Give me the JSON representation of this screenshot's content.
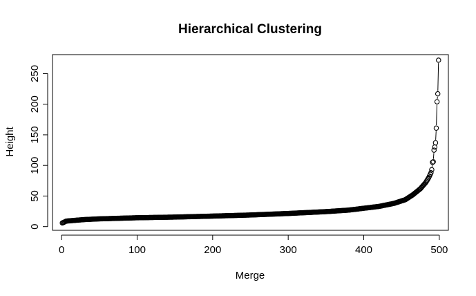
{
  "chart_data": {
    "type": "scatter",
    "title": "Hierarchical Clustering",
    "xlabel": "Merge",
    "ylabel": "Height",
    "xlim": [
      -12,
      512
    ],
    "ylim": [
      -6,
      281
    ],
    "x_ticks": [
      0,
      100,
      200,
      300,
      400,
      500
    ],
    "y_ticks": [
      0,
      50,
      100,
      150,
      200,
      250
    ],
    "grid": false,
    "legend": "none",
    "point_shape": "open-circle",
    "connected": true,
    "n_points": 499,
    "curve_points": [
      {
        "x": 1,
        "y": 6
      },
      {
        "x": 3,
        "y": 7
      },
      {
        "x": 6,
        "y": 9
      },
      {
        "x": 15,
        "y": 10
      },
      {
        "x": 30,
        "y": 11.5
      },
      {
        "x": 50,
        "y": 12.7
      },
      {
        "x": 100,
        "y": 14.5
      },
      {
        "x": 150,
        "y": 15.6
      },
      {
        "x": 200,
        "y": 17.2
      },
      {
        "x": 250,
        "y": 19
      },
      {
        "x": 300,
        "y": 21.5
      },
      {
        "x": 350,
        "y": 24.5
      },
      {
        "x": 380,
        "y": 27
      },
      {
        "x": 400,
        "y": 30
      },
      {
        "x": 420,
        "y": 33
      },
      {
        "x": 440,
        "y": 38
      },
      {
        "x": 455,
        "y": 44
      },
      {
        "x": 465,
        "y": 52
      },
      {
        "x": 475,
        "y": 62
      },
      {
        "x": 482,
        "y": 72
      },
      {
        "x": 486,
        "y": 80
      },
      {
        "x": 489,
        "y": 88
      }
    ],
    "tail_points": [
      {
        "x": 490,
        "y": 93
      },
      {
        "x": 491,
        "y": 105
      },
      {
        "x": 492,
        "y": 106
      },
      {
        "x": 493,
        "y": 125
      },
      {
        "x": 494,
        "y": 130
      },
      {
        "x": 495,
        "y": 137
      },
      {
        "x": 496,
        "y": 161
      },
      {
        "x": 497,
        "y": 204
      },
      {
        "x": 498,
        "y": 217
      },
      {
        "x": 499,
        "y": 272
      }
    ]
  }
}
